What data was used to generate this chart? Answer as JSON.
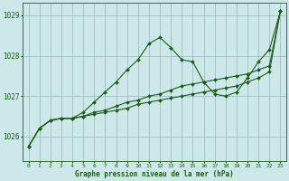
{
  "title": "Graphe pression niveau de la mer (hPa)",
  "background_color": "#cce8e8",
  "grid_color": "#9fbfbf",
  "line_color": "#1a5c1a",
  "xlim": [
    -0.5,
    23.5
  ],
  "ylim": [
    1025.4,
    1029.3
  ],
  "yticks": [
    1026,
    1027,
    1028,
    1029
  ],
  "xticks": [
    0,
    1,
    2,
    3,
    4,
    5,
    6,
    7,
    8,
    9,
    10,
    11,
    12,
    13,
    14,
    15,
    16,
    17,
    18,
    19,
    20,
    21,
    22,
    23
  ],
  "figsize": [
    3.2,
    2.0
  ],
  "dpi": 100,
  "series": [
    [
      1025.75,
      1026.2,
      1026.4,
      1026.45,
      1026.45,
      1026.6,
      1026.85,
      1027.1,
      1027.35,
      1027.65,
      1027.9,
      1028.3,
      1028.45,
      1028.2,
      1027.9,
      1027.85,
      1027.35,
      1027.05,
      1027.0,
      1027.1,
      1027.45,
      1027.85,
      1028.15,
      1029.1
    ],
    [
      1025.75,
      1026.2,
      1026.4,
      1026.45,
      1026.45,
      1026.5,
      1026.6,
      1026.65,
      1026.75,
      1026.85,
      1026.9,
      1027.0,
      1027.05,
      1027.15,
      1027.25,
      1027.3,
      1027.35,
      1027.4,
      1027.45,
      1027.5,
      1027.55,
      1027.65,
      1027.75,
      1029.1
    ],
    [
      1025.75,
      1026.2,
      1026.4,
      1026.45,
      1026.45,
      1026.5,
      1026.55,
      1026.6,
      1026.65,
      1026.7,
      1026.8,
      1026.85,
      1026.9,
      1026.95,
      1027.0,
      1027.05,
      1027.1,
      1027.15,
      1027.2,
      1027.25,
      1027.35,
      1027.45,
      1027.6,
      1029.1
    ]
  ]
}
